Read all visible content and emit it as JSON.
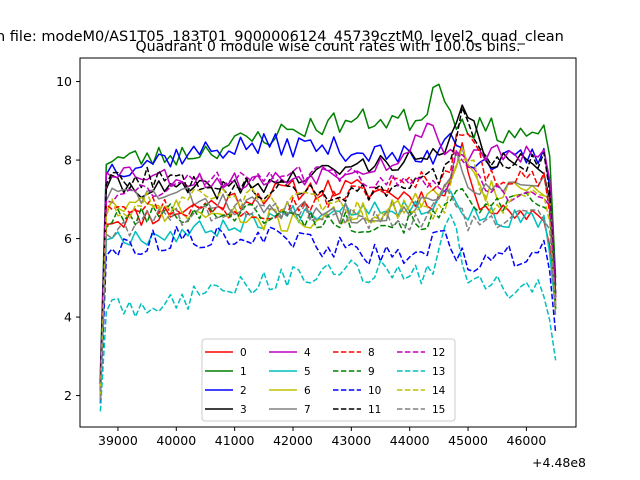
{
  "figure": {
    "suptitle": "n file: modeM0/AS1T05_183T01_9000006124_45739cztM0_level2_quad_clean"
  },
  "chart_data": {
    "type": "line",
    "title": "Quadrant 0 module wise count rates with 100.0s bins.",
    "xlabel": "",
    "ylabel": "",
    "x_offset_label": "+4.48e8",
    "x_offset": 448000000,
    "xlim": [
      38350,
      46850
    ],
    "ylim": [
      1.2,
      10.6
    ],
    "xticks": [
      39000,
      40000,
      41000,
      42000,
      43000,
      44000,
      45000,
      46000
    ],
    "xtick_labels": [
      "39000",
      "40000",
      "41000",
      "42000",
      "43000",
      "44000",
      "45000",
      "46000"
    ],
    "yticks": [
      2,
      4,
      6,
      8,
      10
    ],
    "ytick_labels": [
      "2",
      "4",
      "6",
      "8",
      "10"
    ],
    "grid": false,
    "legend": {
      "placement": "lower-center",
      "columns": 4
    },
    "x_start": 38700,
    "x_step": 100,
    "n_points": 79,
    "series": [
      {
        "name": "0",
        "color": "#ff0000",
        "dash": "solid",
        "start": 2.1,
        "end": 4.3,
        "base": 6.85,
        "amp": 0.35,
        "trend": 0.15,
        "noise": 0.28,
        "peak": 1.3,
        "peak_x": 44900,
        "seed": 11
      },
      {
        "name": "1",
        "color": "#008000",
        "dash": "solid",
        "start": 2.6,
        "end": 5.0,
        "base": 8.35,
        "amp": 0.35,
        "trend": 0.55,
        "noise": 0.3,
        "peak": 1.0,
        "peak_x": 44500,
        "seed": 23
      },
      {
        "name": "2",
        "color": "#0000ff",
        "dash": "solid",
        "start": 2.4,
        "end": 4.8,
        "base": 7.95,
        "amp": 0.3,
        "trend": 0.35,
        "noise": 0.3,
        "peak": 0.8,
        "peak_x": 44700,
        "seed": 37
      },
      {
        "name": "3",
        "color": "#000000",
        "dash": "solid",
        "start": 2.3,
        "end": 4.6,
        "base": 7.45,
        "amp": 0.3,
        "trend": 0.4,
        "noise": 0.25,
        "peak": 1.3,
        "peak_x": 44950,
        "seed": 41
      },
      {
        "name": "4",
        "color": "#bf00bf",
        "dash": "solid",
        "start": 2.3,
        "end": 4.6,
        "base": 7.7,
        "amp": 0.3,
        "trend": 0.2,
        "noise": 0.25,
        "peak": 0.9,
        "peak_x": 44300,
        "seed": 53
      },
      {
        "name": "5",
        "color": "#00bfbf",
        "dash": "solid",
        "start": 1.9,
        "end": 4.2,
        "base": 6.35,
        "amp": 0.3,
        "trend": 0.3,
        "noise": 0.25,
        "peak": 0.5,
        "peak_x": 44600,
        "seed": 67
      },
      {
        "name": "6",
        "color": "#bfbf00",
        "dash": "solid",
        "start": 1.9,
        "end": 4.2,
        "base": 6.55,
        "amp": 0.3,
        "trend": 0.5,
        "noise": 0.3,
        "peak": 1.2,
        "peak_x": 44900,
        "seed": 71
      },
      {
        "name": "7",
        "color": "#808080",
        "dash": "solid",
        "start": 2.0,
        "end": 4.3,
        "base": 6.8,
        "amp": 0.3,
        "trend": 0.3,
        "noise": 0.28,
        "peak": 1.0,
        "peak_x": 44800,
        "seed": 83
      },
      {
        "name": "8",
        "color": "#ff0000",
        "dash": "dashed",
        "start": 2.1,
        "end": 4.4,
        "base": 6.9,
        "amp": 0.3,
        "trend": 0.45,
        "noise": 0.28,
        "peak": 1.4,
        "peak_x": 44950,
        "seed": 97
      },
      {
        "name": "9",
        "color": "#008000",
        "dash": "dashed",
        "start": 2.0,
        "end": 4.2,
        "base": 6.25,
        "amp": 0.3,
        "trend": 0.7,
        "noise": 0.28,
        "peak": 0.8,
        "peak_x": 44900,
        "seed": 101
      },
      {
        "name": "10",
        "color": "#0000ff",
        "dash": "dashed",
        "start": 1.8,
        "end": 3.6,
        "base": 5.7,
        "amp": 0.35,
        "trend": 0.1,
        "noise": 0.3,
        "peak": 0.9,
        "peak_x": 44500,
        "seed": 113
      },
      {
        "name": "11",
        "color": "#000000",
        "dash": "dashed",
        "start": 2.3,
        "end": 4.5,
        "base": 7.2,
        "amp": 0.3,
        "trend": 0.55,
        "noise": 0.28,
        "peak": 1.6,
        "peak_x": 44950,
        "seed": 127
      },
      {
        "name": "12",
        "color": "#bf00bf",
        "dash": "dashed",
        "start": 2.2,
        "end": 4.5,
        "base": 7.3,
        "amp": 0.3,
        "trend": 0.2,
        "noise": 0.25,
        "peak": 1.0,
        "peak_x": 44900,
        "seed": 131
      },
      {
        "name": "13",
        "color": "#00bfbf",
        "dash": "dashed",
        "start": 1.6,
        "end": 2.9,
        "base": 4.6,
        "amp": 0.35,
        "trend": 0.4,
        "noise": 0.3,
        "peak": 1.6,
        "peak_x": 44700,
        "seed": 149
      },
      {
        "name": "14",
        "color": "#bfbf00",
        "dash": "dashed",
        "start": 2.0,
        "end": 4.2,
        "base": 6.6,
        "amp": 0.3,
        "trend": 0.55,
        "noise": 0.3,
        "peak": 1.5,
        "peak_x": 44950,
        "seed": 151
      },
      {
        "name": "15",
        "color": "#808080",
        "dash": "dashed",
        "start": 1.9,
        "end": 4.0,
        "base": 6.3,
        "amp": 0.3,
        "trend": 0.5,
        "noise": 0.28,
        "peak": 0.8,
        "peak_x": 44600,
        "seed": 163
      }
    ]
  }
}
